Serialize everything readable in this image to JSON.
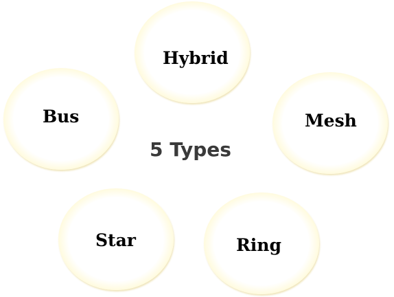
{
  "center": {
    "title": "5 Types"
  },
  "nodes": [
    {
      "label": "Hybrid"
    },
    {
      "label": "Bus"
    },
    {
      "label": "Mesh"
    },
    {
      "label": "Star"
    },
    {
      "label": "Ring"
    }
  ],
  "colors": {
    "circle_fill": "#ffffff",
    "circle_rim": "#f4dc6e",
    "label_text": "#000000",
    "title_text": "#3a3a3a"
  }
}
